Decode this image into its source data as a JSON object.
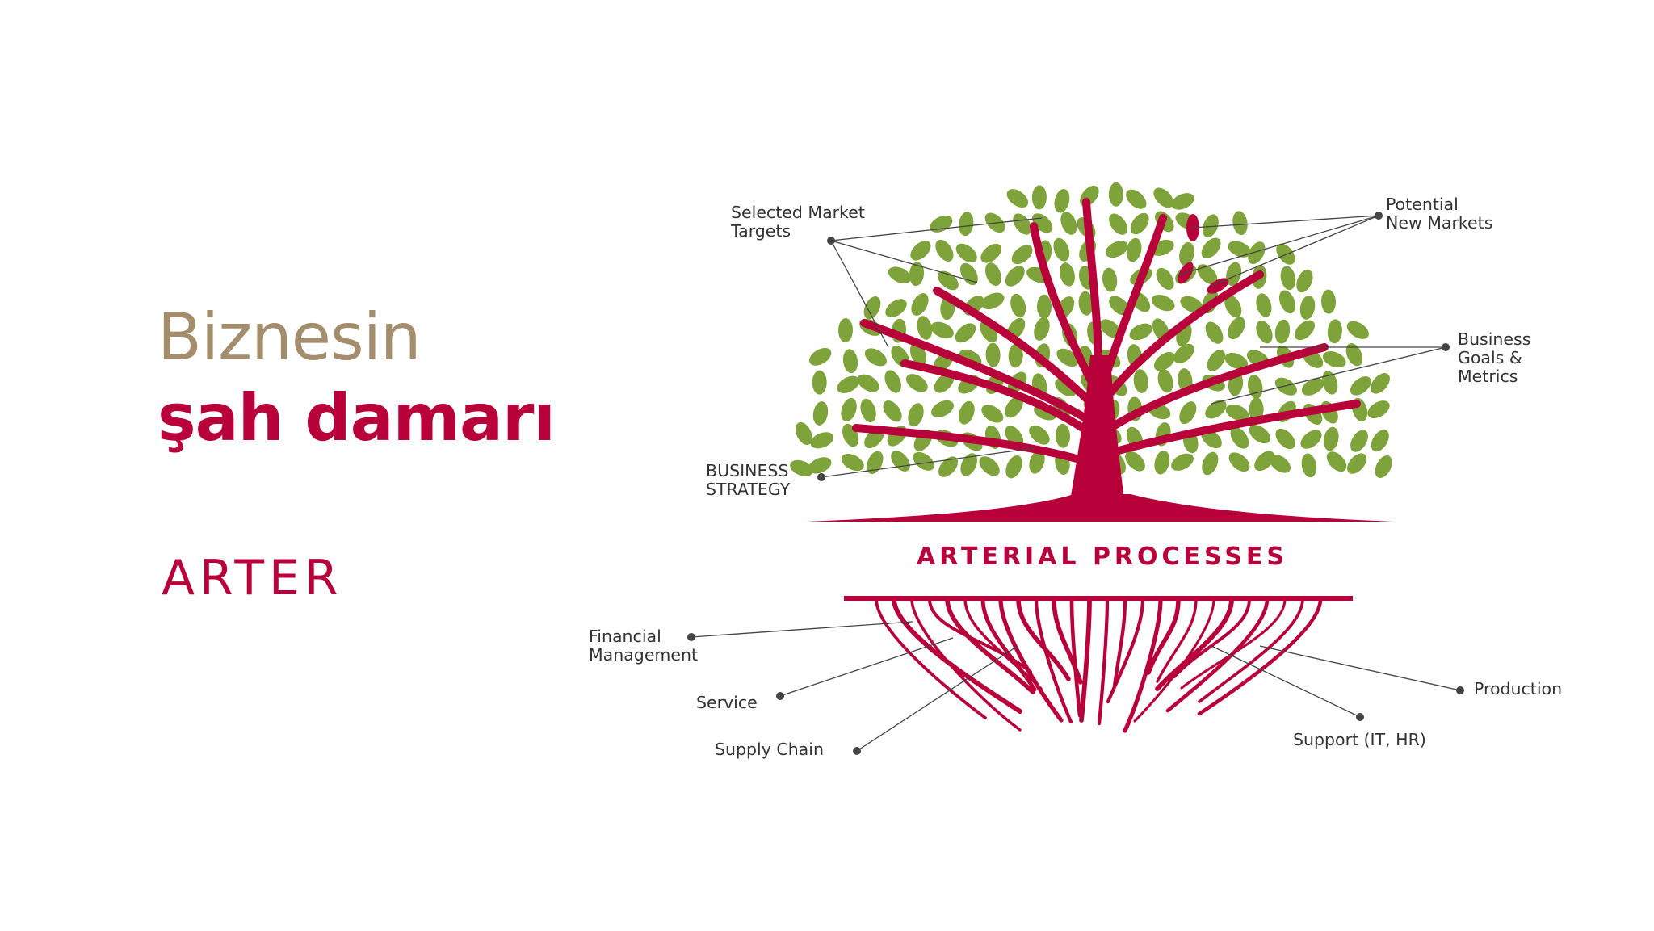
{
  "headline": {
    "line1": "Biznesin",
    "line2": "şah damarı"
  },
  "brand": {
    "logo_text": "ARTER"
  },
  "diagram": {
    "center_title": "ARTERIAL PROCESSES",
    "canopy_labels": {
      "selected_market_targets": [
        "Selected Market",
        "Targets"
      ],
      "potential_new_markets": [
        "Potential",
        "New Markets"
      ],
      "business_goals": [
        "Business",
        "Goals &",
        "Metrics"
      ],
      "business_strategy": [
        "BUSINESS",
        "STRATEGY"
      ]
    },
    "root_labels": {
      "financial_management": [
        "Financial",
        "Management"
      ],
      "service": "Service",
      "supply_chain": "Supply Chain",
      "production": "Production",
      "support": "Support (IT, HR)"
    }
  },
  "colors": {
    "crimson": "#b8003a",
    "gold": "#a38d6d",
    "leaf_green": "#7ea33a",
    "label_text": "#333333",
    "connector": "#444444"
  }
}
